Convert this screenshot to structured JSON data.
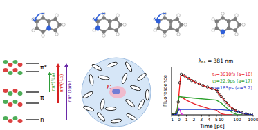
{
  "orbital_diagram": {
    "levels": [
      "π*",
      "π",
      "n"
    ],
    "transitions": [
      {
        "label": "ππ*(¹La)",
        "color": "#2e9e3a"
      },
      {
        "label": "ππ*(¹Lb)",
        "color": "#d62020"
      },
      {
        "label": "nπ* Dark!",
        "color": "#6a2aa8"
      }
    ]
  },
  "solvent": {
    "label": "ε"
  },
  "chart_data": {
    "type": "line",
    "annotation": "λₑₓ = 381 nm",
    "xlabel": "Time [ps]",
    "ylabel": "Fluorescence",
    "xlim": [
      -1,
      1000
    ],
    "xticks": [
      -1,
      0,
      1,
      2,
      3,
      4,
      5,
      10,
      100,
      1000
    ],
    "ylim": [
      0,
      45
    ],
    "tick_labels": "x",
    "grid": false,
    "series": [
      {
        "type": "scatter",
        "marker": "circle",
        "color": "#000000",
        "x": [
          -1,
          -0.6,
          -0.3,
          -0.1,
          0.1,
          0.3,
          0.6,
          0.9,
          1.3,
          1.7,
          2.2,
          2.7,
          3.2,
          3.8,
          4.4,
          5,
          6,
          8,
          10,
          15,
          20,
          30,
          50,
          80,
          120,
          200,
          350,
          600,
          1000
        ],
        "values": [
          0.3,
          0.2,
          2.5,
          12,
          30,
          38,
          37,
          35.5,
          34,
          32,
          30.5,
          29,
          27.5,
          26,
          24.5,
          23.5,
          21.8,
          19,
          17.2,
          14,
          11.5,
          8.8,
          5.5,
          3.8,
          2.7,
          1.9,
          0.9,
          0.3,
          0.1
        ]
      },
      {
        "type": "line",
        "color": "#ff1a1a",
        "x": [
          -1,
          -0.5,
          -0.2,
          0,
          0.2,
          0.5,
          1,
          2,
          3,
          4,
          5,
          7,
          10,
          20,
          40,
          100,
          200,
          500,
          1000
        ],
        "values": [
          0,
          0.5,
          5,
          20,
          36,
          37.5,
          35.1,
          31.1,
          28,
          25.3,
          23.3,
          20,
          17,
          11.8,
          7.3,
          3.2,
          1.8,
          0.35,
          0.02
        ]
      },
      {
        "type": "line",
        "color": "#e020e0",
        "x": [
          -0.6,
          -0.3,
          -0.15,
          0,
          0.15,
          0.3,
          0.6
        ],
        "values": [
          0,
          1,
          4,
          6,
          4,
          1,
          0
        ]
      },
      {
        "type": "line",
        "name": "τ₁=3610fs (a=18)",
        "color": "#e8202a",
        "x": [
          -1,
          -0.3,
          0,
          0.5,
          1,
          2,
          3,
          4,
          5,
          7,
          10,
          20,
          50
        ],
        "values": [
          0,
          2,
          18,
          15.7,
          13.6,
          10.4,
          7.9,
          5.9,
          4.5,
          2.6,
          1.1,
          0.07,
          0
        ]
      },
      {
        "type": "line",
        "name": "τ₂=22.9ps (a=17)",
        "color": "#2ca02c",
        "x": [
          -1,
          -0.3,
          0,
          1,
          2,
          5,
          10,
          20,
          50,
          100,
          200
        ],
        "values": [
          0,
          2,
          17,
          16.3,
          15.6,
          13.7,
          11,
          7.1,
          1.9,
          0.2,
          0
        ]
      },
      {
        "type": "line",
        "name": "τ₃=185ps (a=5.2)",
        "color": "#1f3fd0",
        "x": [
          -1,
          -0.3,
          0,
          5,
          10,
          50,
          100,
          200,
          500,
          1000
        ],
        "values": [
          0,
          0.6,
          5.2,
          5.1,
          4.9,
          3.97,
          3.0,
          1.8,
          0.35,
          0.02
        ]
      }
    ]
  }
}
